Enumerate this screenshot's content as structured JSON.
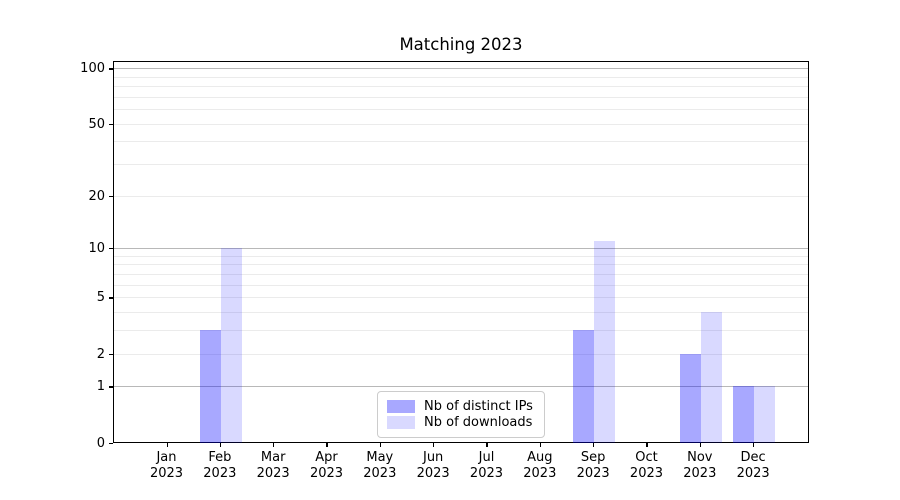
{
  "figure": {
    "title": "Matching 2023"
  },
  "chart_data": {
    "type": "bar",
    "title": "Matching 2023",
    "categories": [
      "Jan 2023",
      "Feb 2023",
      "Mar 2023",
      "Apr 2023",
      "May 2023",
      "Jun 2023",
      "Jul 2023",
      "Aug 2023",
      "Sep 2023",
      "Oct 2023",
      "Nov 2023",
      "Dec 2023"
    ],
    "x_tick_months": [
      "Jan",
      "Feb",
      "Mar",
      "Apr",
      "May",
      "Jun",
      "Jul",
      "Aug",
      "Sep",
      "Oct",
      "Nov",
      "Dec"
    ],
    "x_tick_year": "2023",
    "series": [
      {
        "name": "Nb of distinct IPs",
        "color": "#0000ff57",
        "color_on_white_hex": "#a9a9f5",
        "values": [
          0,
          3,
          0,
          0,
          0,
          0,
          0,
          0,
          3,
          0,
          2,
          1
        ]
      },
      {
        "name": "Nb of downloads",
        "color": "#0000ff26",
        "color_on_white_hex": "#d9d9fa",
        "values": [
          0,
          10,
          0,
          0,
          0,
          0,
          0,
          0,
          11,
          0,
          4,
          1
        ]
      }
    ],
    "yscale": "log1p (symlog-like: 0 at baseline, log spacing above)",
    "ytick_labels": [
      "0",
      "1",
      "2",
      "5",
      "10",
      "20",
      "50",
      "100"
    ],
    "yticks": [
      0,
      1,
      2,
      5,
      10,
      20,
      50,
      100
    ],
    "ylim": [
      0,
      112
    ],
    "grid": "horizontal only; major lines at 1, 10, 100; faint minors at 2-9 and 20-90; bars semi-transparent so grid shows through",
    "legend_position": "lower center, inside axes",
    "axis_color": "#000000",
    "major_grid_color": "#b8b8b8",
    "minor_grid_color": "#ebebeb",
    "background_color": "#ffffff"
  }
}
